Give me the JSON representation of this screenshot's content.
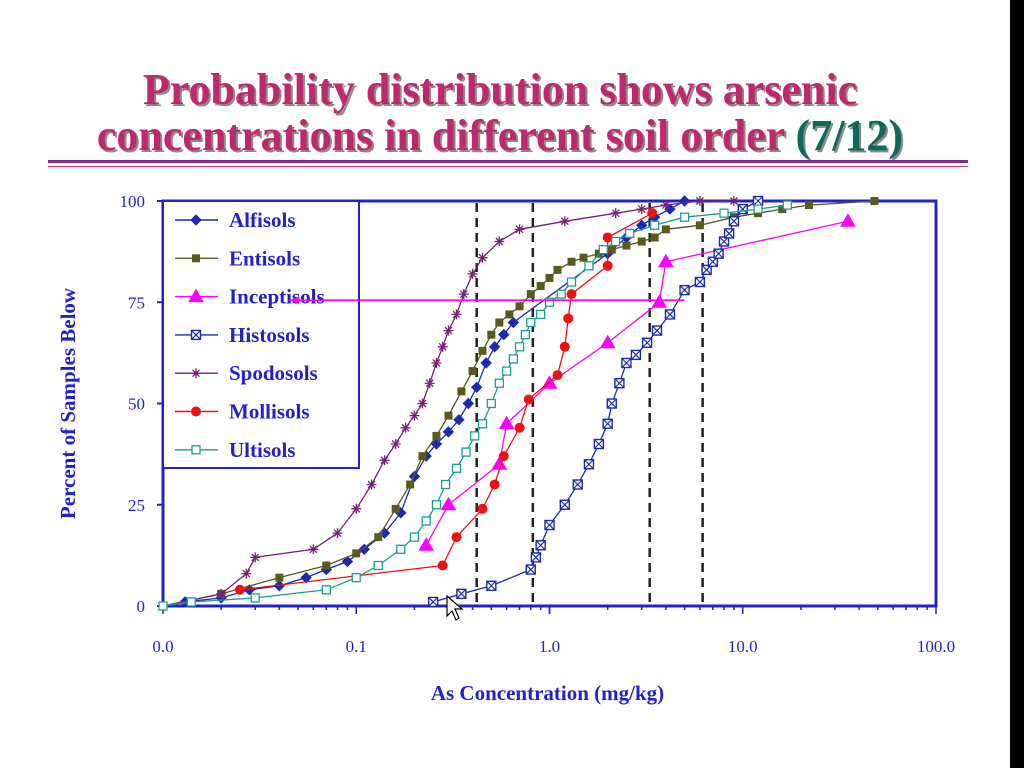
{
  "slide": {
    "title_line1": "Probability distribution shows arsenic",
    "title_line2_prefix": "concentrations in different soil order ",
    "title_line2_fraction": "(7/12)",
    "title_color": "#c0286c",
    "accent_color": "#0b6b58"
  },
  "chart_data": {
    "type": "line",
    "title": "",
    "xlabel": "As Concentration (mg/kg)",
    "ylabel": "Percent of Samples Below",
    "x_scale": "log",
    "xlim": [
      0.01,
      100
    ],
    "ylim": [
      0,
      100
    ],
    "x_ticks": [
      0.01,
      0.1,
      1,
      10,
      100
    ],
    "x_tick_labels": [
      "0.0",
      "0.1",
      "1.0",
      "10.0",
      "100.0"
    ],
    "y_ticks": [
      0,
      25,
      50,
      75,
      100
    ],
    "y_tick_labels": [
      "0",
      "25",
      "50",
      "75",
      "100"
    ],
    "legend_position": "top-left",
    "axis_color": "#2222cc",
    "vertical_dashed_lines_x": [
      0.42,
      0.82,
      3.3,
      6.2
    ],
    "horizontal_arrow": {
      "y": 75.5,
      "x_from": 5.0,
      "x_to": 0.045
    },
    "series": [
      {
        "name": "Alfisols",
        "color": "#1a2bb0",
        "marker": "diamond",
        "x": [
          0.01,
          0.013,
          0.02,
          0.028,
          0.04,
          0.055,
          0.07,
          0.09,
          0.11,
          0.14,
          0.17,
          0.2,
          0.23,
          0.26,
          0.3,
          0.34,
          0.38,
          0.42,
          0.47,
          0.52,
          0.58,
          0.65,
          2.0,
          2.5,
          3.0,
          3.5,
          4.2,
          5.0
        ],
        "y": [
          0,
          1,
          2,
          4,
          5,
          7,
          9,
          11,
          14,
          18,
          23,
          32,
          37,
          40,
          43,
          46,
          50,
          54,
          60,
          64,
          67,
          70,
          87,
          91,
          94,
          96,
          98,
          100
        ]
      },
      {
        "name": "Entisols",
        "color": "#5a5a1a",
        "marker": "square",
        "x": [
          0.01,
          0.02,
          0.04,
          0.07,
          0.1,
          0.13,
          0.16,
          0.19,
          0.22,
          0.26,
          0.3,
          0.35,
          0.4,
          0.45,
          0.5,
          0.55,
          0.62,
          0.7,
          0.8,
          0.9,
          1.0,
          1.1,
          1.3,
          1.5,
          1.8,
          2.1,
          2.5,
          3.0,
          3.5,
          4.0,
          6.0,
          9.0,
          12.0,
          16.0,
          22.0,
          48.0
        ],
        "y": [
          0,
          3,
          7,
          10,
          13,
          17,
          24,
          30,
          37,
          42,
          47,
          53,
          58,
          63,
          67,
          70,
          72,
          74,
          77,
          79,
          81,
          83,
          85,
          86,
          87,
          88,
          89,
          90,
          91,
          93,
          94,
          96,
          97,
          98,
          99,
          100
        ]
      },
      {
        "name": "Inceptisols",
        "color": "#ff00ff",
        "marker": "triangle",
        "x": [
          0.23,
          0.3,
          0.55,
          0.6,
          1.0,
          2.0,
          3.7,
          4.0,
          35.0
        ],
        "y": [
          15,
          25,
          35,
          45,
          55,
          65,
          75,
          85,
          95
        ]
      },
      {
        "name": "Histosols",
        "color": "#1a2bb0",
        "marker": "x-square",
        "x": [
          0.25,
          0.35,
          0.5,
          0.8,
          0.85,
          0.9,
          1.0,
          1.2,
          1.4,
          1.6,
          1.8,
          2.0,
          2.1,
          2.3,
          2.5,
          2.8,
          3.2,
          3.6,
          4.2,
          5.0,
          6.0,
          6.5,
          7.0,
          7.5,
          8.0,
          8.5,
          9.0,
          10.0,
          12.0
        ],
        "y": [
          1,
          3,
          5,
          9,
          12,
          15,
          20,
          25,
          30,
          35,
          40,
          45,
          50,
          55,
          60,
          62,
          65,
          68,
          72,
          78,
          80,
          83,
          85,
          87,
          90,
          92,
          95,
          98,
          100
        ]
      },
      {
        "name": "Spodosols",
        "color": "#7a1f7a",
        "marker": "asterisk",
        "x": [
          0.01,
          0.02,
          0.027,
          0.03,
          0.06,
          0.08,
          0.1,
          0.12,
          0.14,
          0.16,
          0.18,
          0.2,
          0.22,
          0.24,
          0.26,
          0.28,
          0.3,
          0.33,
          0.36,
          0.4,
          0.45,
          0.55,
          0.7,
          1.2,
          2.2,
          3.0,
          4.0,
          6.0,
          9.0
        ],
        "y": [
          0,
          3,
          8,
          12,
          14,
          18,
          24,
          30,
          36,
          40,
          44,
          47,
          50,
          55,
          60,
          64,
          68,
          72,
          77,
          82,
          86,
          90,
          93,
          95,
          97,
          98,
          99,
          100,
          100
        ]
      },
      {
        "name": "Mollisols",
        "color": "#ee1111",
        "marker": "circle",
        "x": [
          0.025,
          0.28,
          0.33,
          0.45,
          0.52,
          0.58,
          0.7,
          0.78,
          1.1,
          1.2,
          1.25,
          1.3,
          2.0,
          2.0,
          3.4
        ],
        "y": [
          4,
          10,
          17,
          24,
          30,
          37,
          44,
          51,
          57,
          64,
          71,
          77,
          84,
          91,
          97
        ]
      },
      {
        "name": "Ultisols",
        "color": "#17a095",
        "marker": "open-square",
        "x": [
          0.01,
          0.014,
          0.03,
          0.07,
          0.1,
          0.13,
          0.17,
          0.2,
          0.23,
          0.26,
          0.29,
          0.33,
          0.37,
          0.41,
          0.45,
          0.5,
          0.55,
          0.6,
          0.65,
          0.7,
          0.75,
          0.8,
          0.9,
          1.0,
          1.15,
          1.3,
          1.6,
          1.9,
          2.2,
          2.6,
          3.5,
          5.0,
          8.0,
          12.0,
          17.0
        ],
        "y": [
          0,
          1,
          2,
          4,
          7,
          10,
          14,
          17,
          21,
          25,
          30,
          34,
          38,
          42,
          45,
          50,
          55,
          58,
          61,
          64,
          67,
          70,
          72,
          75,
          77,
          80,
          84,
          88,
          90,
          92,
          94,
          96,
          97,
          98,
          99
        ]
      }
    ]
  }
}
